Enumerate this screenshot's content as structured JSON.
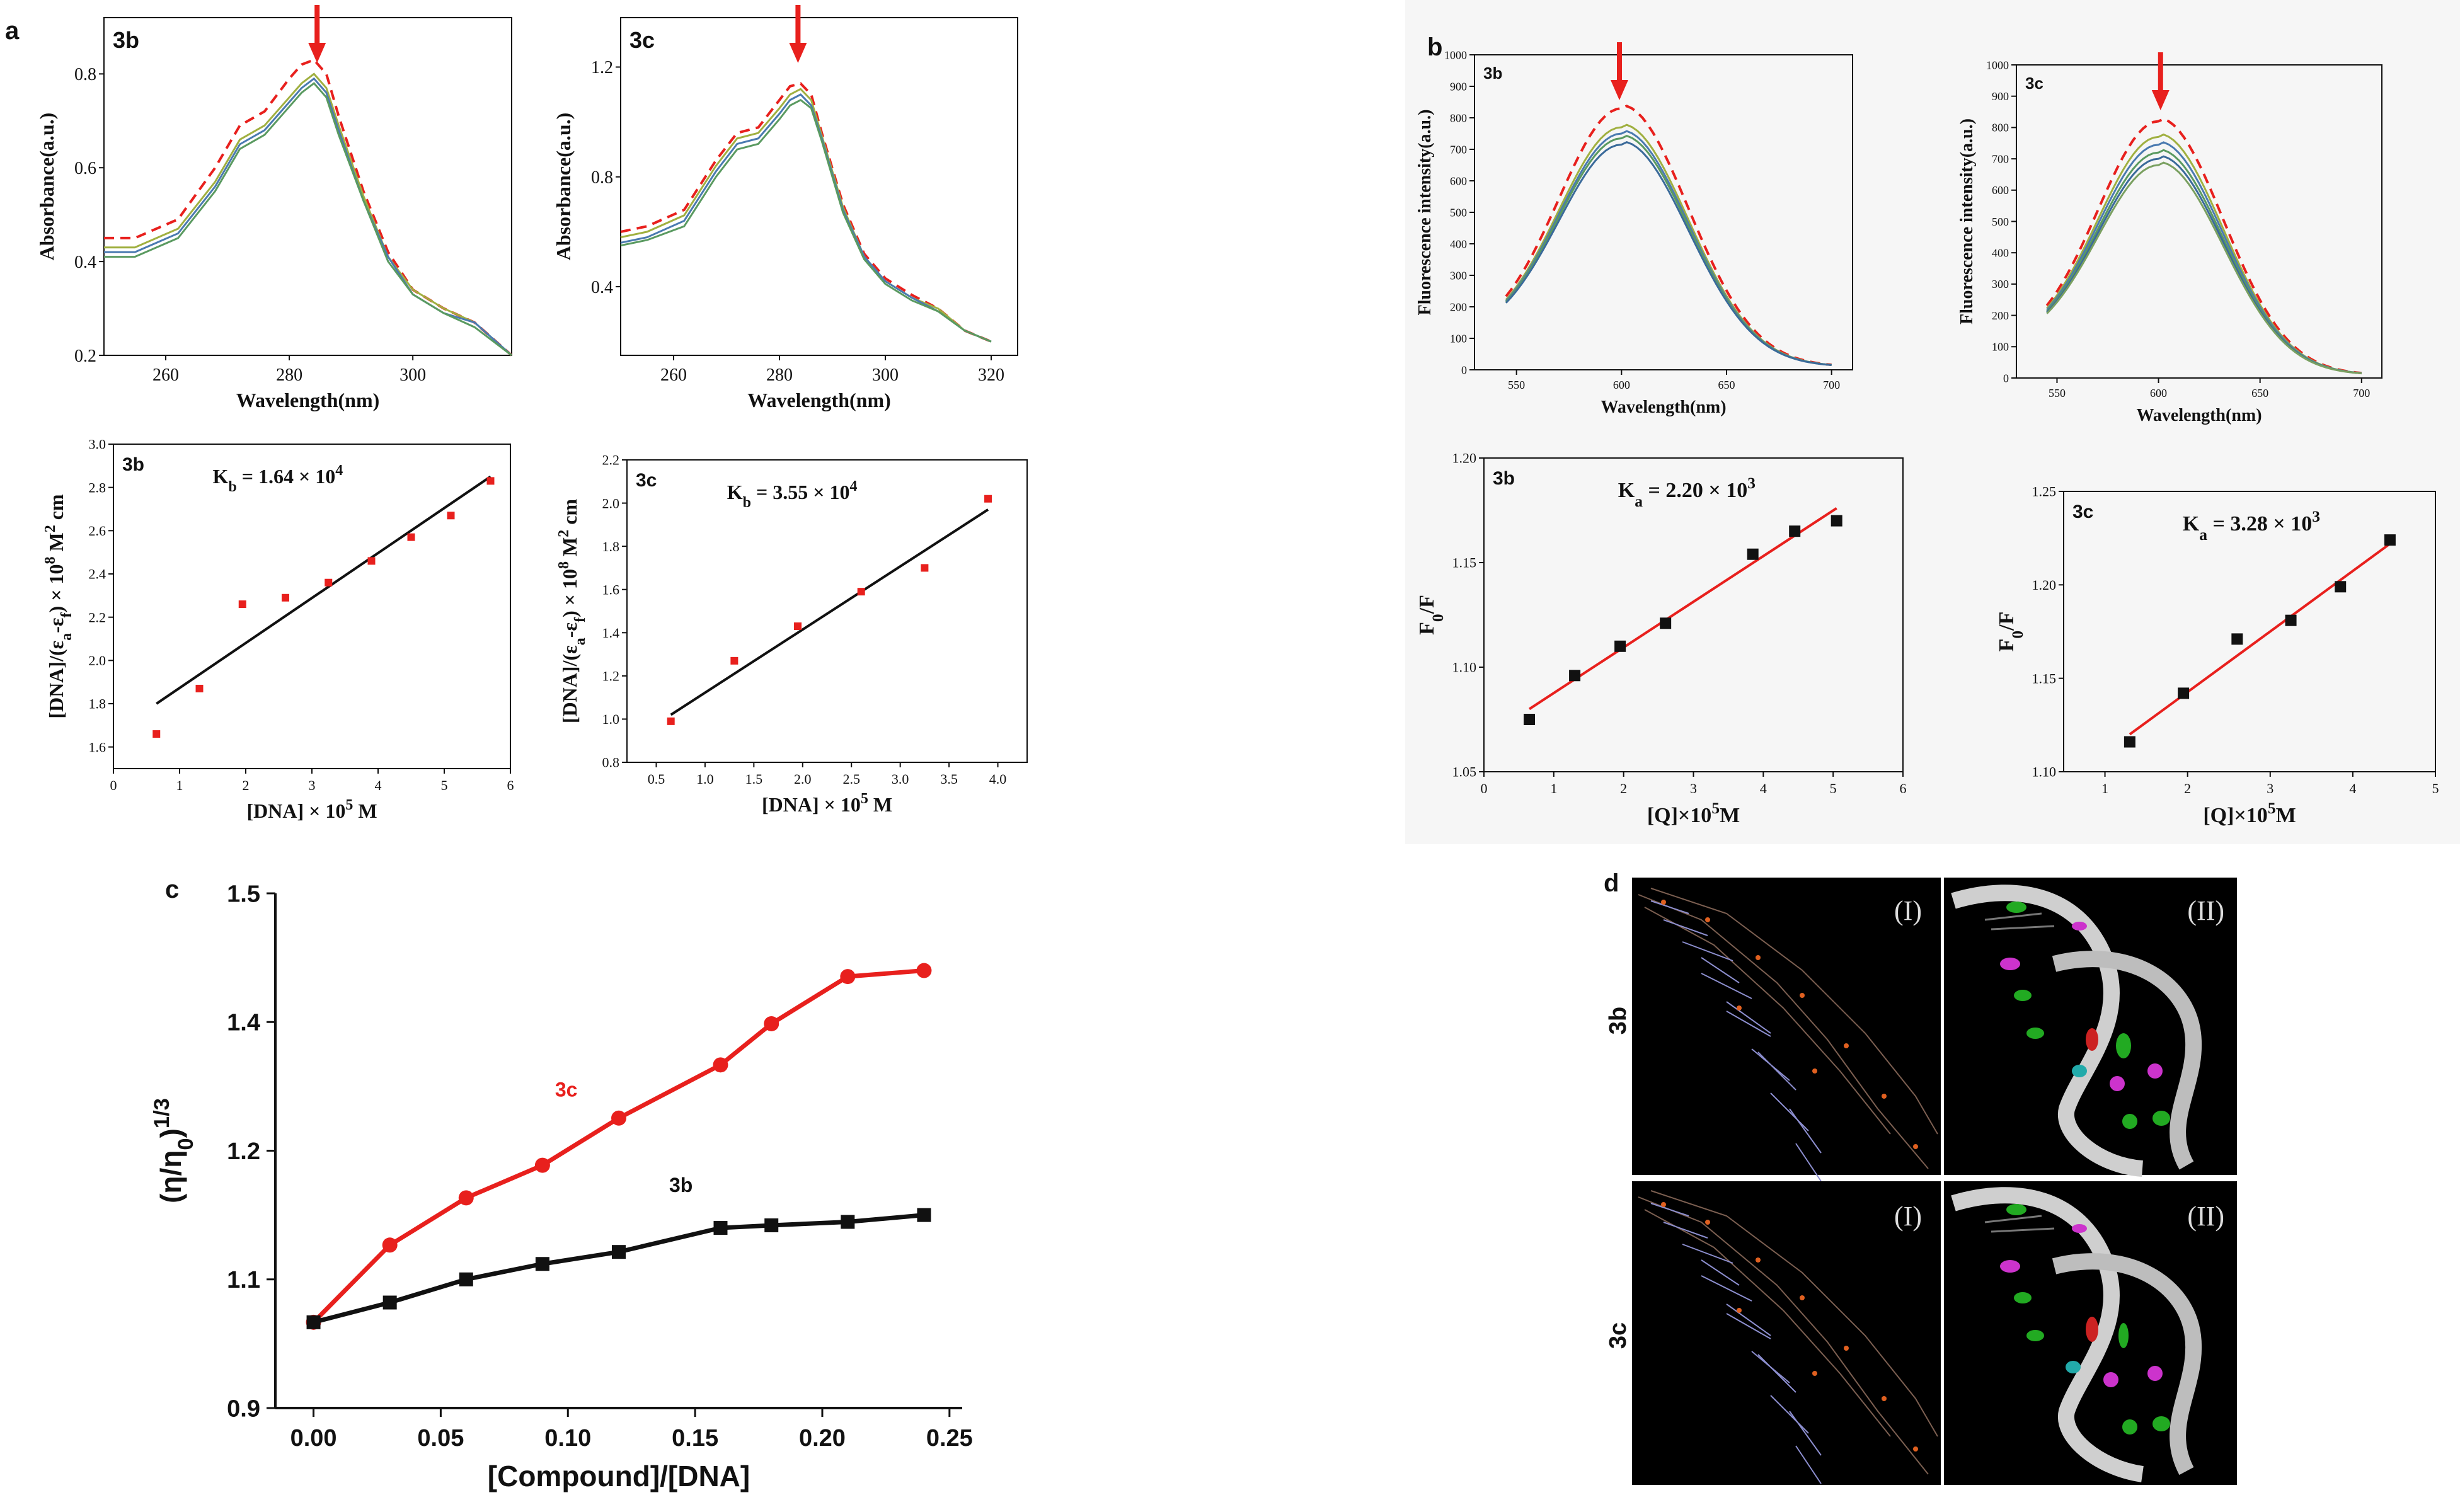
{
  "colors": {
    "red": "#e8201d",
    "black": "#111111",
    "molbg": "#000000",
    "panelbg": "#f6f6f6"
  },
  "panel_letters": {
    "a": "a",
    "b": "b",
    "c": "c",
    "d": "d"
  },
  "molecular": {
    "row_labels": [
      "3b",
      "3c"
    ],
    "col_labels": [
      "(I)",
      "(II)"
    ]
  },
  "chart_data": [
    {
      "id": "a_abs_3b",
      "type": "line",
      "label": "3b",
      "xlabel": "Wavelength(nm)",
      "ylabel": "Absorbance(a.u.)",
      "xlim": [
        250,
        316
      ],
      "ylim": [
        0.2,
        0.92
      ],
      "xticks": [
        260,
        280,
        300
      ],
      "yticks": [
        0.2,
        0.4,
        0.6,
        0.8
      ],
      "arrow_x": 284.5,
      "series": [
        {
          "style": "dashed-red",
          "x": [
            250,
            255,
            262,
            268,
            272,
            276,
            280,
            282,
            284,
            286,
            288,
            292,
            296,
            300,
            305,
            310,
            316
          ],
          "y": [
            0.45,
            0.45,
            0.49,
            0.6,
            0.69,
            0.72,
            0.79,
            0.82,
            0.83,
            0.8,
            0.71,
            0.55,
            0.42,
            0.34,
            0.3,
            0.27,
            0.2
          ]
        },
        {
          "style": "solid",
          "x": [
            250,
            255,
            262,
            268,
            272,
            276,
            280,
            282,
            284,
            286,
            288,
            292,
            296,
            300,
            305,
            310,
            316
          ],
          "y": [
            0.43,
            0.43,
            0.47,
            0.57,
            0.66,
            0.69,
            0.75,
            0.78,
            0.8,
            0.77,
            0.69,
            0.54,
            0.41,
            0.34,
            0.3,
            0.27,
            0.2
          ]
        },
        {
          "style": "solid",
          "x": [
            250,
            255,
            262,
            268,
            272,
            276,
            280,
            282,
            284,
            286,
            288,
            292,
            296,
            300,
            305,
            310,
            316
          ],
          "y": [
            0.42,
            0.42,
            0.46,
            0.56,
            0.65,
            0.68,
            0.74,
            0.77,
            0.79,
            0.76,
            0.68,
            0.53,
            0.41,
            0.33,
            0.29,
            0.27,
            0.2
          ]
        },
        {
          "style": "solid",
          "x": [
            250,
            255,
            262,
            268,
            272,
            276,
            280,
            282,
            284,
            286,
            288,
            292,
            296,
            300,
            305,
            310,
            316
          ],
          "y": [
            0.41,
            0.41,
            0.45,
            0.55,
            0.64,
            0.67,
            0.73,
            0.76,
            0.78,
            0.75,
            0.67,
            0.53,
            0.4,
            0.33,
            0.29,
            0.26,
            0.2
          ]
        }
      ]
    },
    {
      "id": "a_abs_3c",
      "type": "line",
      "label": "3c",
      "xlabel": "Wavelength(nm)",
      "ylabel": "Absorbance(a.u.)",
      "xlim": [
        250,
        325
      ],
      "ylim": [
        0.15,
        1.38
      ],
      "xticks": [
        260,
        280,
        300,
        320
      ],
      "yticks": [
        0.4,
        0.8,
        1.2
      ],
      "arrow_x": 283.5,
      "series": [
        {
          "style": "dashed-red",
          "x": [
            250,
            255,
            262,
            268,
            272,
            276,
            280,
            282,
            284,
            286,
            288,
            292,
            296,
            300,
            305,
            310,
            315,
            320
          ],
          "y": [
            0.6,
            0.62,
            0.68,
            0.86,
            0.96,
            0.98,
            1.08,
            1.13,
            1.14,
            1.1,
            0.96,
            0.7,
            0.52,
            0.43,
            0.37,
            0.32,
            0.24,
            0.2
          ]
        },
        {
          "style": "solid",
          "x": [
            250,
            255,
            262,
            268,
            272,
            276,
            280,
            282,
            284,
            286,
            288,
            292,
            296,
            300,
            305,
            310,
            315,
            320
          ],
          "y": [
            0.58,
            0.6,
            0.66,
            0.84,
            0.94,
            0.96,
            1.05,
            1.1,
            1.12,
            1.08,
            0.95,
            0.69,
            0.51,
            0.42,
            0.36,
            0.32,
            0.24,
            0.2
          ]
        },
        {
          "style": "solid",
          "x": [
            250,
            255,
            262,
            268,
            272,
            276,
            280,
            282,
            284,
            286,
            288,
            292,
            296,
            300,
            305,
            310,
            315,
            320
          ],
          "y": [
            0.56,
            0.58,
            0.64,
            0.82,
            0.92,
            0.94,
            1.03,
            1.08,
            1.1,
            1.06,
            0.94,
            0.68,
            0.51,
            0.42,
            0.36,
            0.31,
            0.24,
            0.2
          ]
        },
        {
          "style": "solid",
          "x": [
            250,
            255,
            262,
            268,
            272,
            276,
            280,
            282,
            284,
            286,
            288,
            292,
            296,
            300,
            305,
            310,
            315,
            320
          ],
          "y": [
            0.55,
            0.57,
            0.62,
            0.8,
            0.9,
            0.92,
            1.01,
            1.06,
            1.08,
            1.05,
            0.93,
            0.67,
            0.5,
            0.41,
            0.35,
            0.31,
            0.24,
            0.2
          ]
        }
      ]
    },
    {
      "id": "a_fit_3b",
      "type": "scatter",
      "label": "3b",
      "annotation": "K",
      "annotation_sub": "b",
      "annotation_rest": " = 1.64 × 10",
      "annotation_sup": "4",
      "xlabel_parts": [
        "[DNA] × 10",
        "5",
        " M"
      ],
      "ylabel_parts": [
        "[DNA]/(ε",
        "a",
        "-ε",
        "f",
        ") × 10",
        "8",
        " M",
        "2",
        " cm"
      ],
      "xlim": [
        0,
        6
      ],
      "ylim": [
        1.5,
        3.0
      ],
      "xticks": [
        0,
        1,
        2,
        3,
        4,
        5,
        6
      ],
      "yticks": [
        1.6,
        1.8,
        2.0,
        2.2,
        2.4,
        2.6,
        2.8,
        3.0
      ],
      "points": {
        "x": [
          0.65,
          1.3,
          1.95,
          2.6,
          3.25,
          3.9,
          4.5,
          5.1,
          5.7
        ],
        "y": [
          1.66,
          1.87,
          2.26,
          2.29,
          2.36,
          2.46,
          2.57,
          2.67,
          2.83
        ]
      },
      "fit": {
        "x": [
          0.65,
          5.7
        ],
        "y": [
          1.8,
          2.85
        ]
      }
    },
    {
      "id": "a_fit_3c",
      "type": "scatter",
      "label": "3c",
      "annotation": "K",
      "annotation_sub": "b",
      "annotation_rest": " = 3.55 × 10",
      "annotation_sup": "4",
      "xlabel_parts": [
        "[DNA] × 10",
        "5",
        " M"
      ],
      "ylabel_parts": [
        "[DNA]/(ε",
        "a",
        "-ε",
        "f",
        ") × 10",
        "8",
        " M",
        "2",
        " cm"
      ],
      "xlim": [
        0.2,
        4.3
      ],
      "ylim": [
        0.8,
        2.2
      ],
      "xticks": [
        0.5,
        1.0,
        1.5,
        2.0,
        2.5,
        3.0,
        3.5,
        4.0
      ],
      "yticks": [
        0.8,
        1.0,
        1.2,
        1.4,
        1.6,
        1.8,
        2.0,
        2.2
      ],
      "points": {
        "x": [
          0.65,
          1.3,
          1.95,
          2.6,
          3.25,
          3.9
        ],
        "y": [
          0.99,
          1.27,
          1.43,
          1.59,
          1.7,
          2.02
        ]
      },
      "fit": {
        "x": [
          0.65,
          3.9
        ],
        "y": [
          1.02,
          1.97
        ]
      }
    },
    {
      "id": "b_fl_3b",
      "type": "line",
      "label": "3b",
      "xlabel": "Wavelength(nm)",
      "ylabel": "Fluorescence intensity(a.u.)",
      "xlim": [
        530,
        710
      ],
      "ylim": [
        0,
        1000
      ],
      "xticks": [
        550,
        600,
        650,
        700
      ],
      "yticks": [
        0,
        100,
        200,
        300,
        400,
        500,
        600,
        700,
        800,
        900,
        1000
      ],
      "arrow_x": 599,
      "series": [
        {
          "style": "dashed-red",
          "peak": 830
        },
        {
          "style": "solid",
          "peak": 770
        },
        {
          "style": "solid",
          "peak": 750
        },
        {
          "style": "solid",
          "peak": 735
        },
        {
          "style": "solid",
          "peak": 715
        }
      ]
    },
    {
      "id": "b_fl_3c",
      "type": "line",
      "label": "3c",
      "xlabel": "Wavelength(nm)",
      "ylabel": "Fluorescence intensity(a.u.)",
      "xlim": [
        530,
        710
      ],
      "ylim": [
        0,
        1000
      ],
      "xticks": [
        550,
        600,
        650,
        700
      ],
      "yticks": [
        0,
        100,
        200,
        300,
        400,
        500,
        600,
        700,
        800,
        900,
        1000
      ],
      "arrow_x": 601,
      "series": [
        {
          "style": "dashed-red",
          "peak": 820
        },
        {
          "style": "solid",
          "peak": 770
        },
        {
          "style": "solid",
          "peak": 745
        },
        {
          "style": "solid",
          "peak": 720
        },
        {
          "style": "solid",
          "peak": 700
        },
        {
          "style": "solid",
          "peak": 680
        }
      ]
    },
    {
      "id": "b_sv_3b",
      "type": "scatter",
      "label": "3b",
      "annotation": "K",
      "annotation_sub": "a",
      "annotation_rest": " = 2.20 × 10",
      "annotation_sup": "3",
      "xlabel_parts": [
        "[Q]×10",
        "5",
        "M"
      ],
      "ylabel_parts": [
        "F",
        "0",
        "/F"
      ],
      "xlim": [
        0,
        6
      ],
      "ylim": [
        1.05,
        1.2
      ],
      "xticks": [
        0,
        1,
        2,
        3,
        4,
        5,
        6
      ],
      "yticks": [
        1.05,
        1.1,
        1.15,
        1.2
      ],
      "points": {
        "x": [
          0.65,
          1.3,
          1.95,
          2.6,
          3.85,
          4.45,
          5.05
        ],
        "y": [
          1.075,
          1.096,
          1.11,
          1.121,
          1.154,
          1.165,
          1.17
        ]
      },
      "fit": {
        "x": [
          0.65,
          5.05
        ],
        "y": [
          1.08,
          1.176
        ]
      }
    },
    {
      "id": "b_sv_3c",
      "type": "scatter",
      "label": "3c",
      "annotation": "K",
      "annotation_sub": "a",
      "annotation_rest": " = 3.28 × 10",
      "annotation_sup": "3",
      "xlabel_parts": [
        "[Q]×10",
        "5",
        "M"
      ],
      "ylabel_parts": [
        "F",
        "0",
        "/F"
      ],
      "xlim": [
        0.5,
        5
      ],
      "ylim": [
        1.1,
        1.25
      ],
      "xticks": [
        1,
        2,
        3,
        4,
        5
      ],
      "yticks": [
        1.1,
        1.15,
        1.2,
        1.25
      ],
      "points": {
        "x": [
          1.3,
          1.95,
          2.6,
          3.25,
          3.85,
          4.45
        ],
        "y": [
          1.116,
          1.142,
          1.171,
          1.181,
          1.199,
          1.224
        ]
      },
      "fit": {
        "x": [
          1.3,
          4.45
        ],
        "y": [
          1.12,
          1.222
        ]
      }
    },
    {
      "id": "c_visc",
      "type": "line",
      "xlabel": "[Compound]/[DNA]",
      "ylabel_parts": [
        "(η/η",
        "0",
        ")",
        "1/3"
      ],
      "xlim": [
        -0.015,
        0.255
      ],
      "ylim": [
        0.9,
        1.5
      ],
      "xticks": [
        0.0,
        0.05,
        0.1,
        0.15,
        0.2,
        0.25
      ],
      "yticks": [
        0.9,
        1.05,
        1.2,
        1.35,
        1.5
      ],
      "series": [
        {
          "name": "3c",
          "marker": "circle",
          "x": [
            0,
            0.03,
            0.06,
            0.09,
            0.12,
            0.16,
            0.18,
            0.21,
            0.24
          ],
          "y": [
            1.0,
            1.09,
            1.145,
            1.183,
            1.238,
            1.3,
            1.348,
            1.403,
            1.41
          ]
        },
        {
          "name": "3b",
          "marker": "square",
          "x": [
            0,
            0.03,
            0.06,
            0.09,
            0.12,
            0.16,
            0.18,
            0.21,
            0.24
          ],
          "y": [
            1.0,
            1.023,
            1.05,
            1.068,
            1.082,
            1.11,
            1.113,
            1.117,
            1.125
          ]
        }
      ]
    }
  ]
}
